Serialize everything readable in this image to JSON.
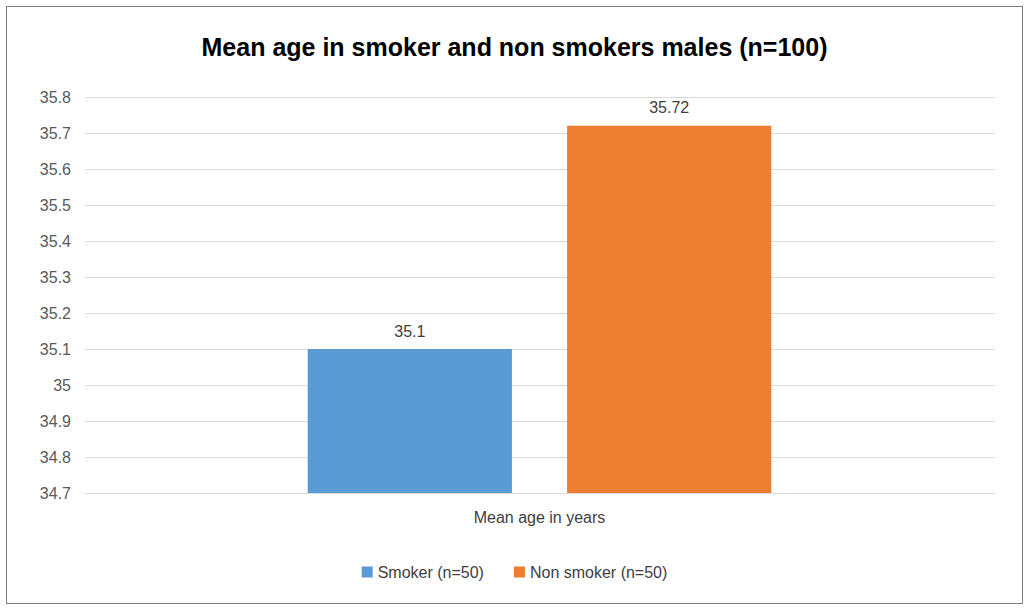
{
  "chart_data": {
    "type": "bar",
    "title": "Mean age in smoker and non smokers males (n=100)",
    "categories": [
      "Mean age in years"
    ],
    "series": [
      {
        "name": "Smoker (n=50)",
        "color": "#5b9bd5",
        "values": [
          35.1
        ]
      },
      {
        "name": "Non smoker (n=50)",
        "color": "#ed7d31",
        "values": [
          35.72
        ]
      }
    ],
    "ylim": [
      34.7,
      35.8
    ],
    "yticks": [
      34.7,
      34.8,
      34.9,
      35,
      35.1,
      35.2,
      35.3,
      35.4,
      35.5,
      35.6,
      35.7,
      35.8
    ],
    "grid": true,
    "legend": "bottom",
    "data_labels": true
  }
}
